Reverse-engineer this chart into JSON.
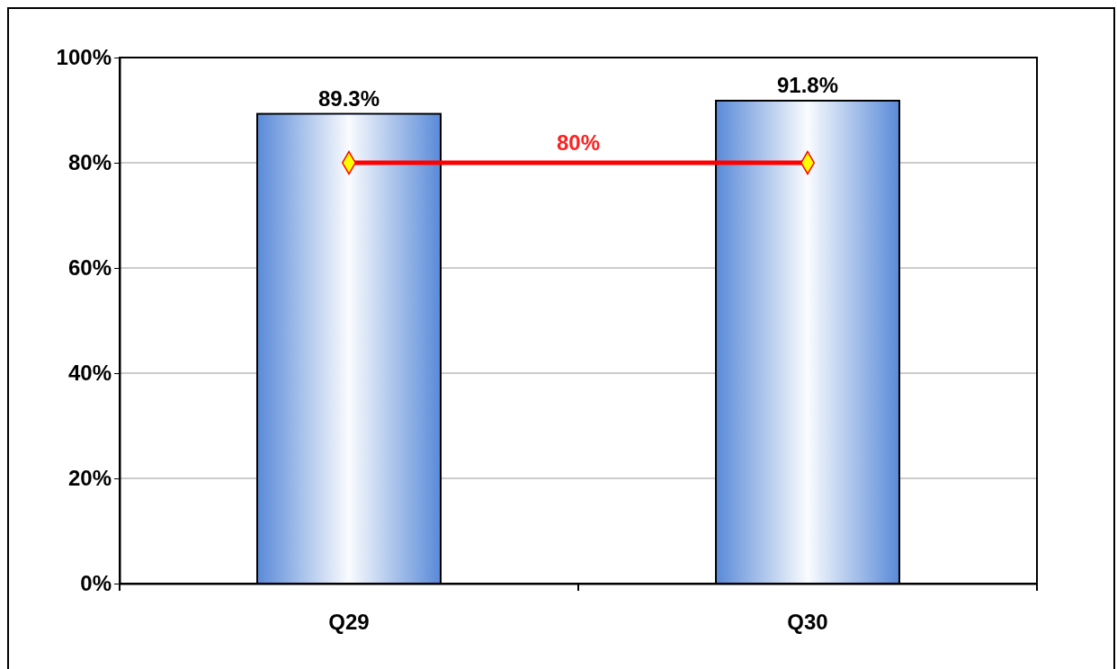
{
  "chart_data": {
    "type": "bar",
    "categories": [
      "Q29",
      "Q30"
    ],
    "series": [
      {
        "color": "#5b8bd9",
        "values": [
          89.3,
          91.8
        ],
        "value_labels": [
          "89.3%",
          "91.8%"
        ]
      },
      {
        "type": "line",
        "color": "#ff0000",
        "values": [
          80,
          80
        ]
      }
    ],
    "marker": "diamond",
    "line_style": "solid",
    "ylim": [
      0,
      100
    ],
    "yticks": [
      {
        "value": 0,
        "label": "0%"
      },
      {
        "value": 20,
        "label": "20%"
      },
      {
        "value": 40,
        "label": "40%"
      },
      {
        "value": 60,
        "label": "60%"
      },
      {
        "value": 80,
        "label": "80%"
      },
      {
        "value": 100,
        "label": "100%"
      }
    ],
    "grid": "y",
    "annotations": [
      {
        "text": "80%",
        "y": 80
      }
    ]
  }
}
